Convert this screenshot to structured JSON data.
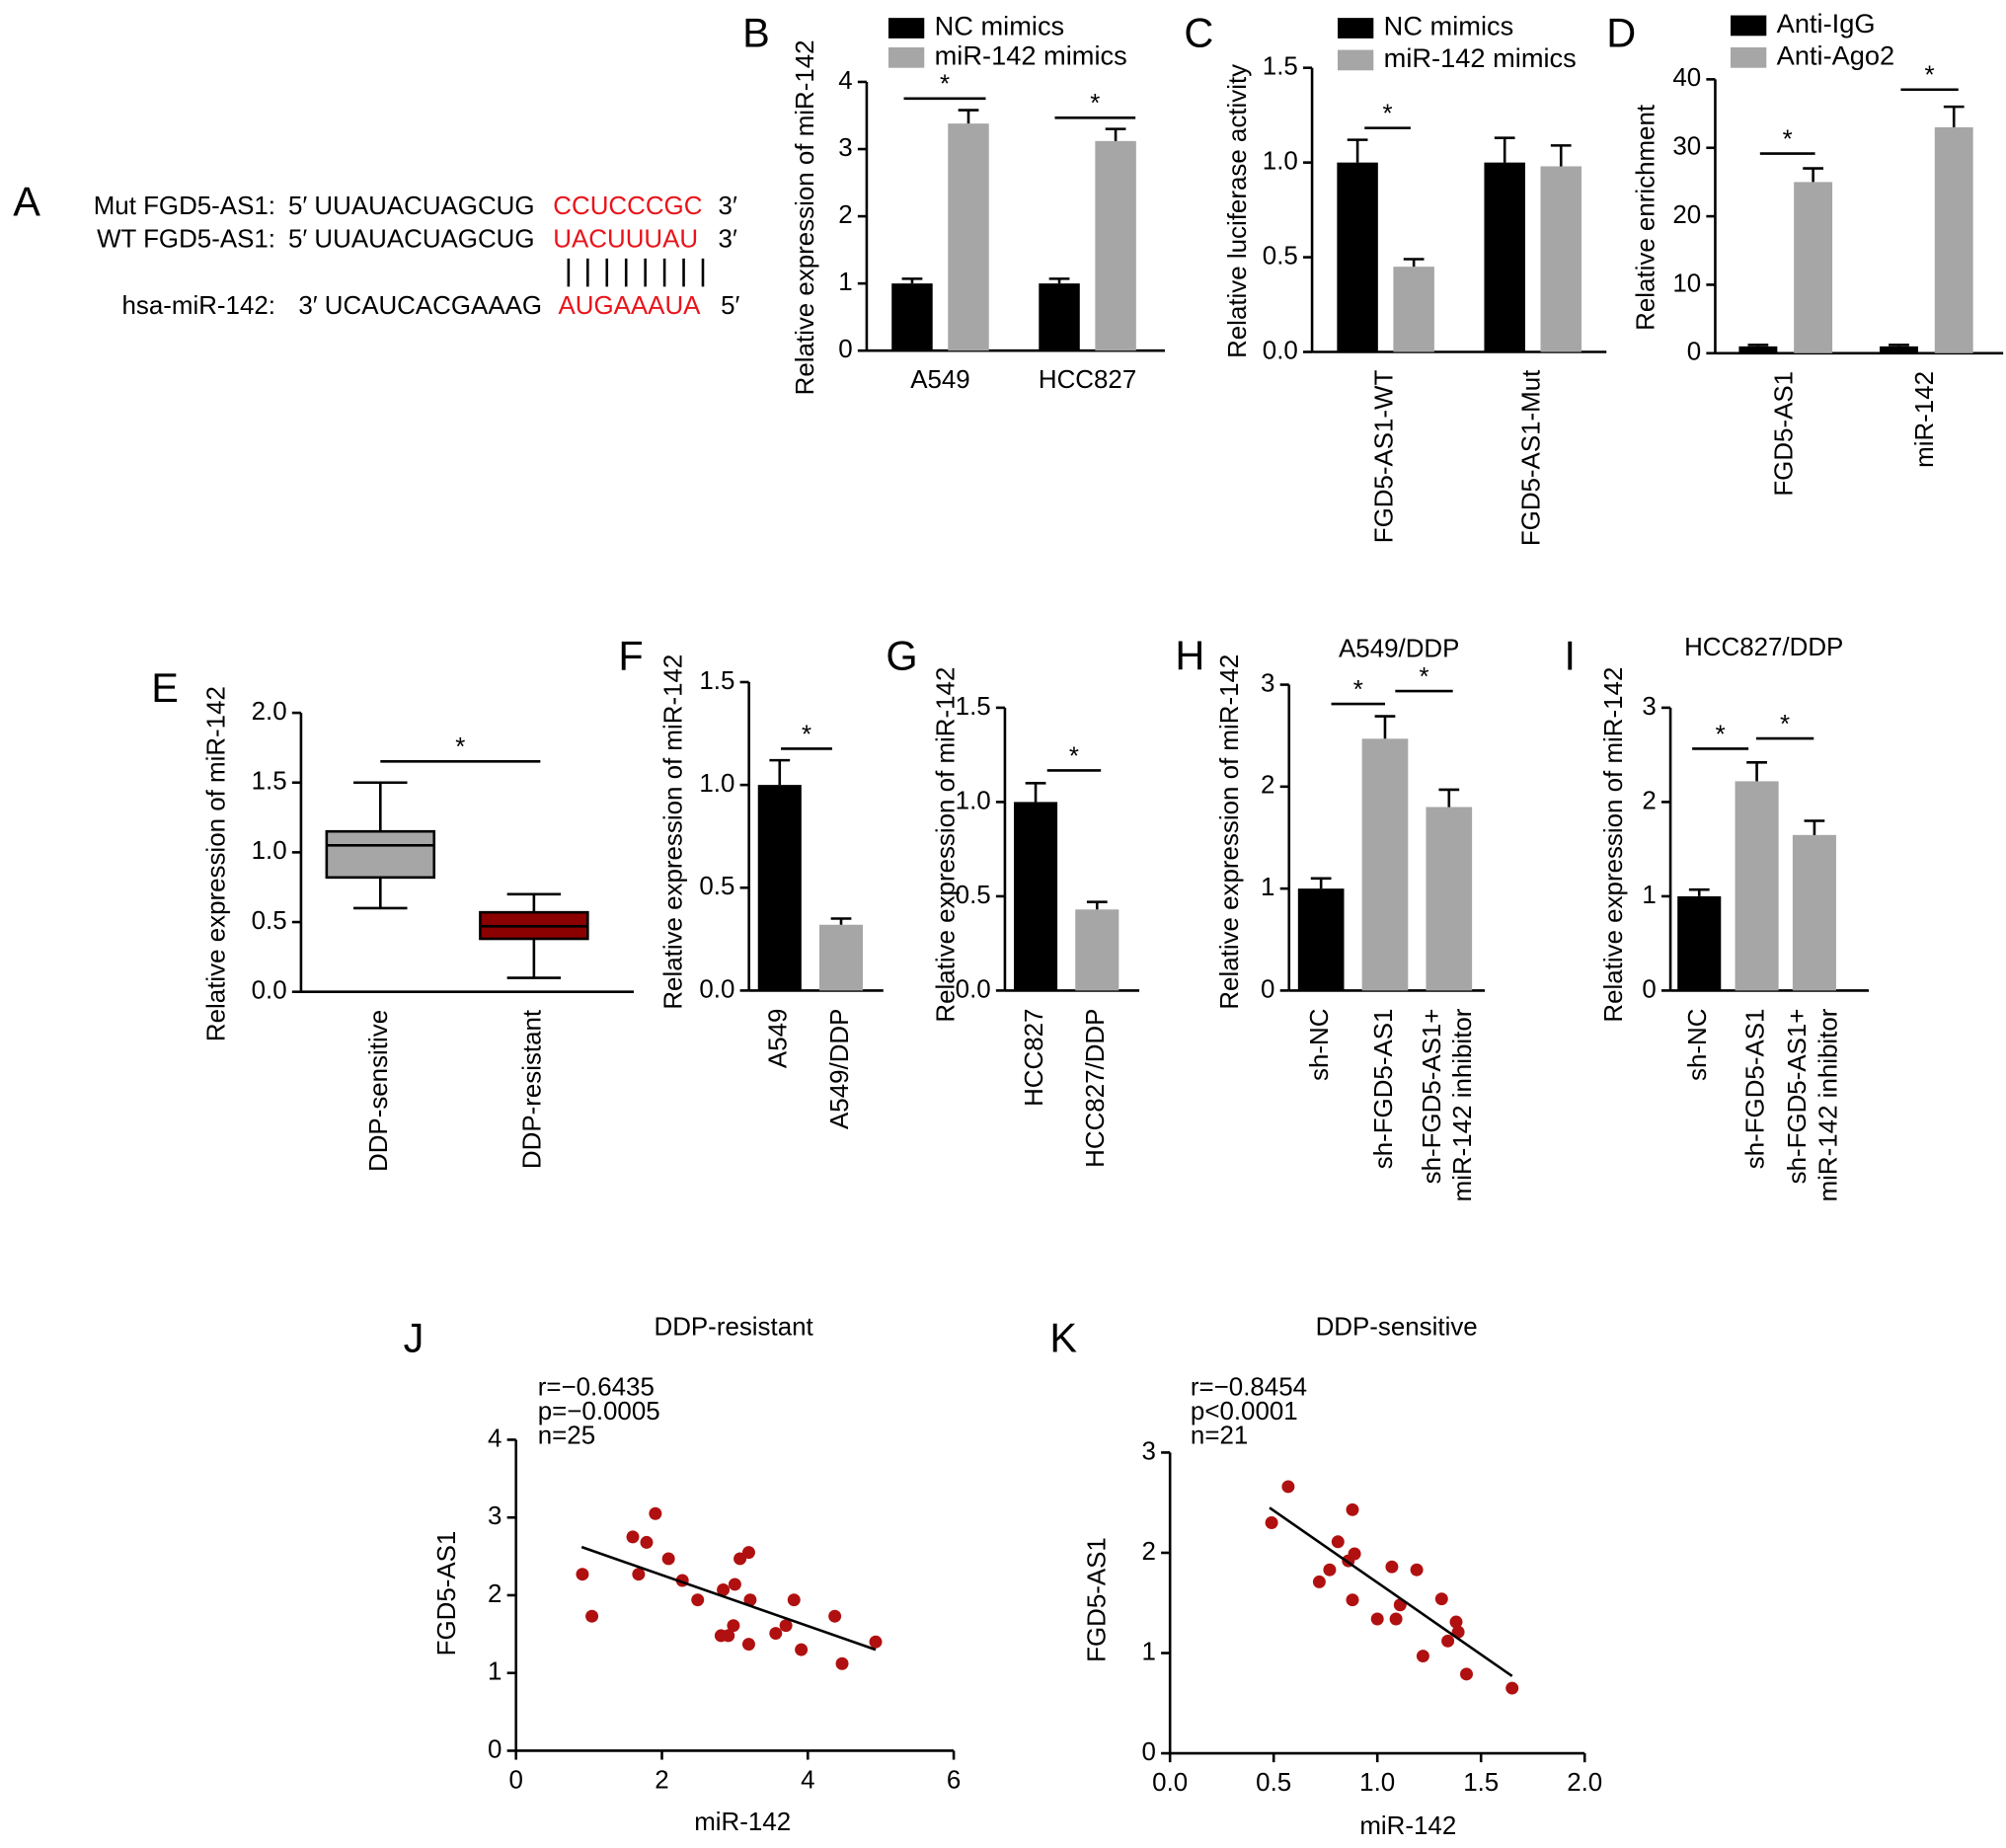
{
  "panel_a": {
    "panel_label": "A",
    "rows": [
      {
        "name": "Mut FGD5-AS1:",
        "left": "5′ UUAUACUAGCUG",
        "site": "CCUCCCGC",
        "end": "3′"
      },
      {
        "name": "WT FGD5-AS1:",
        "left": "5′ UUAUACUAGCUG",
        "site": "UACUUUAU",
        "end": "3′"
      },
      {
        "name": "hsa-miR-142:",
        "left": "3′ UCAUCACGAAAG",
        "site": "AUGAAAUA",
        "end": "5′"
      }
    ]
  },
  "chart_data": [
    {
      "type": "bar",
      "panel_label": "B",
      "ylabel": "Relative expression of miR-142",
      "categories": [
        "A549",
        "HCC827"
      ],
      "series": [
        {
          "name": "NC mimics",
          "color": "#000000",
          "values": [
            1.0,
            1.0
          ],
          "errors": [
            0.07,
            0.07
          ]
        },
        {
          "name": "miR-142 mimics",
          "color": "#a6a6a6",
          "values": [
            3.38,
            3.12
          ],
          "errors": [
            0.2,
            0.18
          ]
        }
      ],
      "ylim": [
        0,
        4
      ],
      "yticks": [
        0,
        1,
        2,
        3,
        4
      ],
      "annotations": [
        "*",
        "*"
      ]
    },
    {
      "type": "bar",
      "panel_label": "C",
      "ylabel": "Relative luciferase activity",
      "categories": [
        "FGD5-AS1-WT",
        "FGD5-AS1-Mut"
      ],
      "series": [
        {
          "name": "NC mimics",
          "color": "#000000",
          "values": [
            1.0,
            1.0
          ],
          "errors": [
            0.12,
            0.13
          ]
        },
        {
          "name": "miR-142 mimics",
          "color": "#a6a6a6",
          "values": [
            0.45,
            0.98
          ],
          "errors": [
            0.04,
            0.11
          ]
        }
      ],
      "ylim": [
        0,
        1.5
      ],
      "yticks": [
        {
          "value": 0,
          "label": "0.0"
        },
        0.5,
        {
          "value": 1,
          "label": "1.0"
        },
        1.5
      ],
      "annotations": [
        "*"
      ]
    },
    {
      "type": "bar",
      "panel_label": "D",
      "ylabel": "Relative enrichment",
      "categories": [
        "FGD5-AS1",
        "miR-142"
      ],
      "series": [
        {
          "name": "Anti-IgG",
          "color": "#000000",
          "values": [
            1.0,
            1.0
          ],
          "errors": [
            0.2,
            0.2
          ]
        },
        {
          "name": "Anti-Ago2",
          "color": "#a6a6a6",
          "values": [
            25,
            33
          ],
          "errors": [
            2,
            3
          ]
        }
      ],
      "ylim": [
        0,
        40
      ],
      "yticks": [
        0,
        10,
        20,
        30,
        40
      ],
      "annotations": [
        "*",
        "*"
      ]
    },
    {
      "type": "box",
      "panel_label": "E",
      "ylabel": "Relative expression of miR-142",
      "categories": [
        "DDP-sensitive",
        "DDP-resistant"
      ],
      "boxes": [
        {
          "min": 0.6,
          "q1": 0.82,
          "median": 1.05,
          "q3": 1.15,
          "max": 1.5,
          "color": "#a6a6a6"
        },
        {
          "min": 0.1,
          "q1": 0.38,
          "median": 0.47,
          "q3": 0.57,
          "max": 0.7,
          "color": "#8b0000"
        }
      ],
      "ylim": [
        0,
        2
      ],
      "yticks": [
        {
          "value": 0,
          "label": "0.0"
        },
        0.5,
        {
          "value": 1,
          "label": "1.0"
        },
        1.5,
        {
          "value": 2,
          "label": "2.0"
        }
      ],
      "annotations": [
        "*"
      ]
    },
    {
      "type": "bar",
      "panel_label": "F",
      "ylabel": "Relative expression of miR-142",
      "categories": [
        "A549",
        "A549/DDP"
      ],
      "values": [
        1.0,
        0.32
      ],
      "errors": [
        0.12,
        0.03
      ],
      "colors": [
        "#000000",
        "#a6a6a6"
      ],
      "ylim": [
        0,
        1.5
      ],
      "yticks": [
        {
          "value": 0,
          "label": "0.0"
        },
        0.5,
        {
          "value": 1,
          "label": "1.0"
        },
        1.5
      ],
      "annotations": [
        "*"
      ]
    },
    {
      "type": "bar",
      "panel_label": "G",
      "ylabel": "Relative expression of miR-142",
      "categories": [
        "HCC827",
        "HCC827/DDP"
      ],
      "values": [
        1.0,
        0.43
      ],
      "errors": [
        0.1,
        0.04
      ],
      "colors": [
        "#000000",
        "#a6a6a6"
      ],
      "ylim": [
        0,
        1.5
      ],
      "yticks": [
        {
          "value": 0,
          "label": "0.0"
        },
        0.5,
        {
          "value": 1,
          "label": "1.0"
        },
        1.5
      ],
      "annotations": [
        "*"
      ]
    },
    {
      "type": "bar",
      "panel_label": "H",
      "title": "A549/DDP",
      "ylabel": "Relative expression of miR-142",
      "categories": [
        "sh-NC",
        "sh-FGD5-AS1",
        [
          "sh-FGD5-AS1+",
          "miR-142 inhibitor"
        ]
      ],
      "values": [
        1.0,
        2.47,
        1.8
      ],
      "errors": [
        0.1,
        0.22,
        0.17
      ],
      "colors": [
        "#000000",
        "#a6a6a6",
        "#a6a6a6"
      ],
      "ylim": [
        0,
        3
      ],
      "yticks": [
        0,
        1,
        2,
        3
      ],
      "annotations": [
        "*",
        "*"
      ]
    },
    {
      "type": "bar",
      "panel_label": "I",
      "title": "HCC827/DDP",
      "ylabel": "Relative expression of miR-142",
      "categories": [
        "sh-NC",
        "sh-FGD5-AS1",
        [
          "sh-FGD5-AS1+",
          "miR-142 inhibitor"
        ]
      ],
      "values": [
        1.0,
        2.22,
        1.65
      ],
      "errors": [
        0.07,
        0.2,
        0.15
      ],
      "colors": [
        "#000000",
        "#a6a6a6",
        "#a6a6a6"
      ],
      "ylim": [
        0,
        3
      ],
      "yticks": [
        0,
        1,
        2,
        3
      ],
      "annotations": [
        "*",
        "*"
      ]
    },
    {
      "type": "scatter",
      "panel_label": "J",
      "title": "DDP-resistant",
      "xlabel": "miR-142",
      "ylabel": "FGD5-AS1",
      "annotations": [
        "r=−0.6435",
        "p=−0.0005",
        "n=25"
      ],
      "color": "#b01010",
      "x": [
        0.91,
        1.04,
        1.6,
        1.68,
        1.79,
        1.91,
        2.09,
        2.28,
        2.49,
        2.81,
        2.84,
        2.91,
        2.98,
        3.0,
        3.07,
        3.19,
        3.19,
        3.21,
        3.56,
        3.7,
        3.81,
        3.91,
        4.37,
        4.47,
        4.93
      ],
      "values": [
        2.27,
        1.73,
        2.75,
        2.27,
        2.68,
        3.05,
        2.47,
        2.19,
        1.94,
        1.48,
        2.07,
        1.48,
        1.61,
        2.14,
        2.47,
        2.55,
        1.37,
        1.94,
        1.51,
        1.61,
        1.94,
        1.3,
        1.73,
        1.12,
        1.4
      ],
      "fit": {
        "x": [
          0.9,
          4.93
        ],
        "values": [
          2.62,
          1.3
        ]
      },
      "xlim": [
        0,
        6
      ],
      "xticks": [
        0,
        2,
        4,
        6
      ],
      "ylim": [
        0,
        4
      ],
      "yticks": [
        0,
        1,
        2,
        3,
        4
      ]
    },
    {
      "type": "scatter",
      "panel_label": "K",
      "title": "DDP-sensitive",
      "xlabel": "miR-142",
      "ylabel": "FGD5-AS1",
      "annotations": [
        "r=−0.8454",
        "p<0.0001",
        "n=21"
      ],
      "color": "#b01010",
      "x": [
        0.49,
        0.57,
        0.72,
        0.77,
        0.81,
        0.86,
        0.88,
        0.88,
        0.89,
        1.0,
        1.07,
        1.09,
        1.11,
        1.19,
        1.22,
        1.31,
        1.34,
        1.38,
        1.39,
        1.43,
        1.65
      ],
      "values": [
        2.3,
        2.66,
        1.71,
        1.83,
        2.11,
        1.92,
        1.53,
        2.43,
        1.99,
        1.34,
        1.86,
        1.34,
        1.48,
        1.83,
        0.97,
        1.54,
        1.12,
        1.31,
        1.21,
        0.79,
        0.65
      ],
      "fit": {
        "x": [
          0.48,
          1.65
        ],
        "values": [
          2.45,
          0.77
        ]
      },
      "xlim": [
        0,
        2
      ],
      "xticks": [
        {
          "value": 0,
          "label": "0.0"
        },
        0.5,
        {
          "value": 1,
          "label": "1.0"
        },
        1.5,
        {
          "value": 2,
          "label": "2.0"
        }
      ],
      "ylim": [
        0,
        3
      ],
      "yticks": [
        0,
        1,
        2,
        3
      ]
    }
  ]
}
